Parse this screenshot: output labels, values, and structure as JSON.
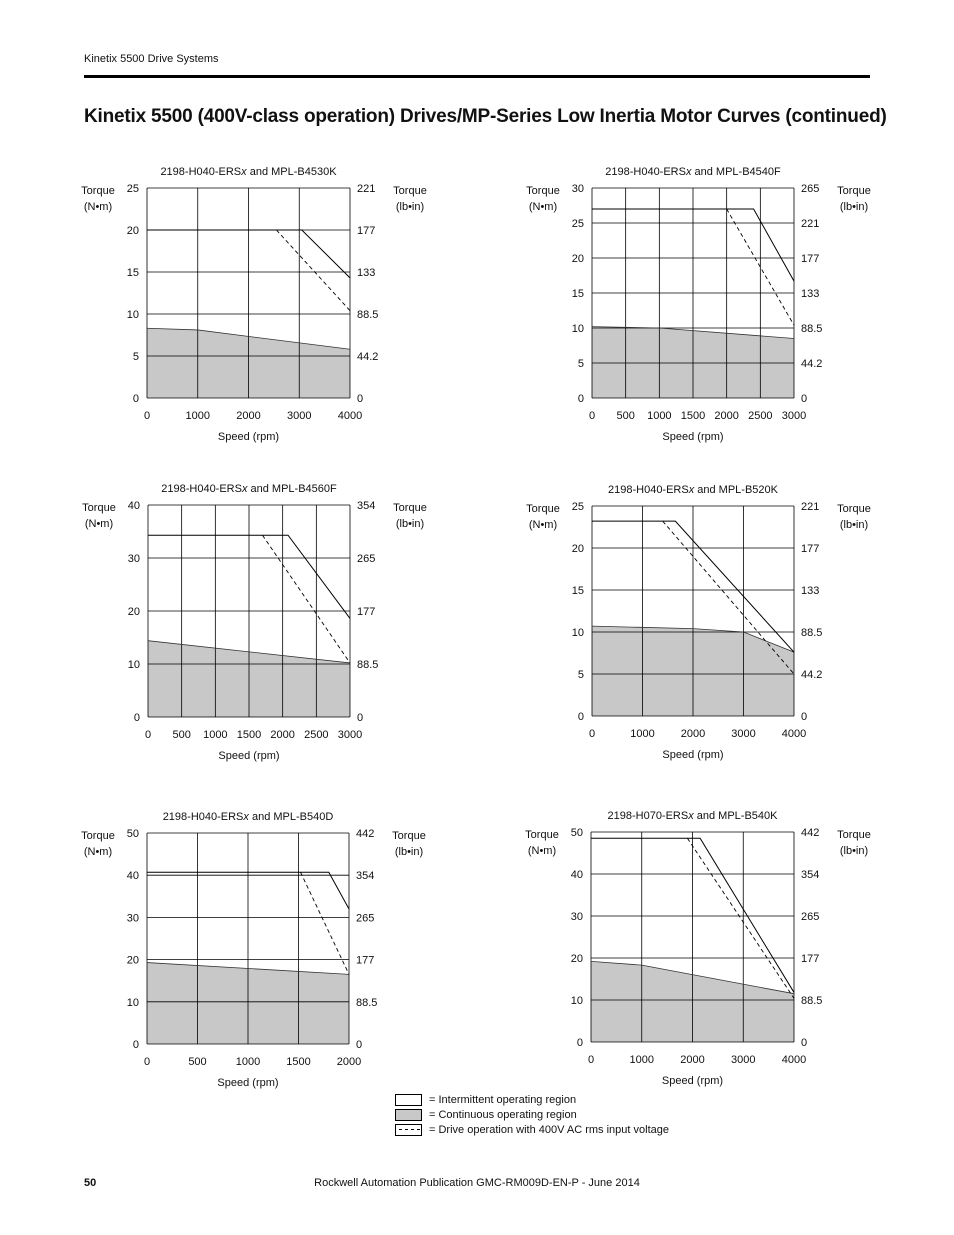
{
  "header": {
    "section": "Kinetix 5500 Drive Systems"
  },
  "page_title": "Kinetix 5500 (400V-class operation) Drives/MP-Series Low Inertia Motor Curves (continued)",
  "footer": {
    "page_number": "50",
    "publication": "Rockwell Automation Publication GMC-RM009D-EN-P - June 2014"
  },
  "legend": {
    "items": [
      {
        "label": "= Intermittent operating region"
      },
      {
        "label": "= Continuous operating region"
      },
      {
        "label": "= Drive operation with 400V AC rms input voltage"
      }
    ]
  },
  "common": {
    "ylabel_left": [
      "Torque",
      "(N•m)"
    ],
    "ylabel_right": [
      "Torque",
      "(lb•in)"
    ],
    "xlabel": "Speed (rpm)"
  },
  "chart_data": [
    {
      "type": "area",
      "title_pre": "2198-H040-ERS",
      "title_italic": "x",
      "title_post": " and MPL-B4530K",
      "xlim": [
        0,
        4000
      ],
      "ylim": [
        0,
        25
      ],
      "xticks": [
        0,
        1000,
        2000,
        3000,
        4000
      ],
      "yticks": [
        0,
        5,
        10,
        15,
        20,
        25
      ],
      "yticks_right": [
        "0",
        "44.2",
        "88.5",
        "133",
        "177",
        "221"
      ],
      "series": [
        {
          "role": "intermittent",
          "x": [
            0,
            3050,
            4000
          ],
          "y": [
            20,
            20,
            14.3
          ]
        },
        {
          "role": "continuous",
          "x": [
            0,
            1000,
            4000
          ],
          "y": [
            8.3,
            8.1,
            5.8
          ]
        },
        {
          "role": "400v",
          "x": [
            2550,
            4000
          ],
          "y": [
            20,
            10.4
          ]
        }
      ]
    },
    {
      "type": "area",
      "title_pre": "2198-H040-ERS",
      "title_italic": "x",
      "title_post": " and MPL-B4540F",
      "xlim": [
        0,
        3000
      ],
      "ylim": [
        0,
        30
      ],
      "xticks": [
        0,
        500,
        1000,
        1500,
        2000,
        2500,
        3000
      ],
      "yticks": [
        0,
        5,
        10,
        15,
        20,
        25,
        30
      ],
      "yticks_right": [
        "0",
        "44.2",
        "88.5",
        "133",
        "177",
        "221",
        "265"
      ],
      "series": [
        {
          "role": "intermittent",
          "x": [
            0,
            2400,
            3000
          ],
          "y": [
            27,
            27,
            16.7
          ]
        },
        {
          "role": "continuous",
          "x": [
            0,
            1000,
            3000
          ],
          "y": [
            10.2,
            10,
            8.5
          ]
        },
        {
          "role": "400v",
          "x": [
            2000,
            3000
          ],
          "y": [
            27,
            10.4
          ]
        }
      ]
    },
    {
      "type": "area",
      "title_pre": "2198-H040-ERS",
      "title_italic": "x",
      "title_post": " and MPL-B4560F",
      "xlim": [
        0,
        3000
      ],
      "ylim": [
        0,
        40
      ],
      "xticks": [
        0,
        500,
        1000,
        1500,
        2000,
        2500,
        3000
      ],
      "yticks": [
        0,
        10,
        20,
        30,
        40
      ],
      "yticks_right": [
        "0",
        "88.5",
        "177",
        "265",
        "354"
      ],
      "series": [
        {
          "role": "intermittent",
          "x": [
            0,
            2080,
            3000
          ],
          "y": [
            34.3,
            34.3,
            18.6
          ]
        },
        {
          "role": "continuous",
          "x": [
            0,
            3000
          ],
          "y": [
            14.4,
            10.2
          ]
        },
        {
          "role": "400v",
          "x": [
            1700,
            3000
          ],
          "y": [
            34.3,
            10.2
          ]
        }
      ]
    },
    {
      "type": "area",
      "title_pre": "2198-H040-ERS",
      "title_italic": "x",
      "title_post": " and MPL-B520K",
      "xlim": [
        0,
        4000
      ],
      "ylim": [
        0,
        25
      ],
      "xticks": [
        0,
        1000,
        2000,
        3000,
        4000
      ],
      "yticks": [
        0,
        5,
        10,
        15,
        20,
        25
      ],
      "yticks_right": [
        "0",
        "44.2",
        "88.5",
        "133",
        "177",
        "221"
      ],
      "series": [
        {
          "role": "intermittent",
          "x": [
            0,
            1650,
            4000
          ],
          "y": [
            23.2,
            23.2,
            7.6
          ]
        },
        {
          "role": "continuous",
          "x": [
            0,
            2000,
            3000,
            4000
          ],
          "y": [
            10.7,
            10.4,
            10.0,
            7.6
          ]
        },
        {
          "role": "400v",
          "x": [
            1400,
            4000
          ],
          "y": [
            23.2,
            5
          ]
        }
      ]
    },
    {
      "type": "area",
      "title_pre": "2198-H040-ERS",
      "title_italic": "x",
      "title_post": " and MPL-B540D",
      "xlim": [
        0,
        2000
      ],
      "ylim": [
        0,
        50
      ],
      "xticks": [
        0,
        500,
        1000,
        1500,
        2000
      ],
      "yticks": [
        0,
        10,
        20,
        30,
        40,
        50
      ],
      "yticks_right": [
        "0",
        "88.5",
        "177",
        "265",
        "354",
        "442"
      ],
      "series": [
        {
          "role": "intermittent",
          "x": [
            0,
            1800,
            2000
          ],
          "y": [
            40.7,
            40.7,
            32
          ]
        },
        {
          "role": "continuous",
          "x": [
            0,
            2000
          ],
          "y": [
            19.3,
            16.5
          ]
        },
        {
          "role": "400v",
          "x": [
            1520,
            2000
          ],
          "y": [
            40.7,
            16.5
          ]
        }
      ]
    },
    {
      "type": "area",
      "title_pre": "2198-H070-ERS",
      "title_italic": "x",
      "title_post": " and MPL-B540K",
      "xlim": [
        0,
        4000
      ],
      "ylim": [
        0,
        50
      ],
      "xticks": [
        0,
        1000,
        2000,
        3000,
        4000
      ],
      "yticks": [
        0,
        10,
        20,
        30,
        40,
        50
      ],
      "yticks_right": [
        "0",
        "88.5",
        "177",
        "265",
        "354",
        "442"
      ],
      "series": [
        {
          "role": "intermittent",
          "x": [
            0,
            2150,
            4000
          ],
          "y": [
            48.5,
            48.5,
            11.8
          ]
        },
        {
          "role": "continuous",
          "x": [
            0,
            1000,
            4000
          ],
          "y": [
            19.2,
            18.3,
            11.5
          ]
        },
        {
          "role": "400v",
          "x": [
            1900,
            4000
          ],
          "y": [
            48.5,
            10.4
          ]
        }
      ]
    }
  ]
}
